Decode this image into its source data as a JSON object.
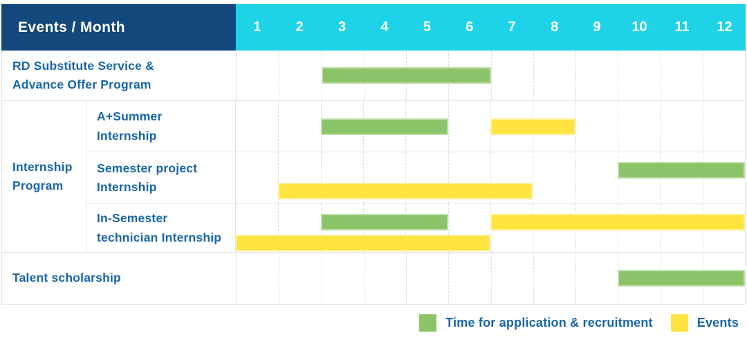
{
  "header": {
    "title": "Events / Month"
  },
  "colors": {
    "header_navy": "#12487C",
    "header_cyan": "#1ED2E8",
    "text_blue": "#1765A8",
    "grid_line": "#E3E3E3",
    "bar_green": "#8BC468",
    "bar_yellow": "#FFE33E"
  },
  "chart_data": {
    "type": "gantt",
    "title": "",
    "corner_label": "Events / Month",
    "x_axis": {
      "label": "Month",
      "ticks": [
        "1",
        "2",
        "3",
        "4",
        "5",
        "6",
        "7",
        "8",
        "9",
        "10",
        "11",
        "12"
      ],
      "range": [
        1,
        12
      ],
      "grid": true
    },
    "series_colors": {
      "application": "#8BC468",
      "events": "#FFE33E"
    },
    "groups": [
      {
        "name": "Internship Program",
        "label_lines": [
          "Internship",
          "Program"
        ]
      }
    ],
    "rows": [
      {
        "label": "RD Substitute Service & Advance Offer Program",
        "label_lines": [
          "RD Substitute Service &",
          "Advance Offer Program"
        ],
        "group": null,
        "bars": [
          {
            "series": "application",
            "start_month": 3,
            "end_month": 6,
            "lane": "center"
          }
        ]
      },
      {
        "label": "A+Summer Internship",
        "label_lines": [
          "A+Summer",
          "Internship"
        ],
        "group": "Internship Program",
        "bars": [
          {
            "series": "application",
            "start_month": 3,
            "end_month": 5,
            "lane": "center"
          },
          {
            "series": "events",
            "start_month": 7,
            "end_month": 8,
            "lane": "center"
          }
        ]
      },
      {
        "label": "Semester project Internship",
        "label_lines": [
          "Semester project",
          "Internship"
        ],
        "group": "Internship Program",
        "bars": [
          {
            "series": "application",
            "start_month": 10,
            "end_month": 12,
            "lane": "top"
          },
          {
            "series": "events",
            "start_month": 2,
            "end_month": 7,
            "lane": "bottom"
          }
        ]
      },
      {
        "label": "In-Semester technician Internship",
        "label_lines": [
          "In-Semester",
          "technician Internship"
        ],
        "group": "Internship Program",
        "bars": [
          {
            "series": "application",
            "start_month": 3,
            "end_month": 5,
            "lane": "top"
          },
          {
            "series": "events",
            "start_month": 7,
            "end_month": 12,
            "lane": "top"
          },
          {
            "series": "events",
            "start_month": 1,
            "end_month": 6,
            "lane": "bottom"
          }
        ]
      },
      {
        "label": "Talent scholarship",
        "label_lines": [
          "Talent scholarship"
        ],
        "group": null,
        "bars": [
          {
            "series": "application",
            "start_month": 10,
            "end_month": 12,
            "lane": "center"
          }
        ]
      }
    ],
    "legend": [
      {
        "series": "application",
        "label": "Time for application & recruitment"
      },
      {
        "series": "events",
        "label": "Events"
      }
    ],
    "legend_position": "bottom-right"
  }
}
